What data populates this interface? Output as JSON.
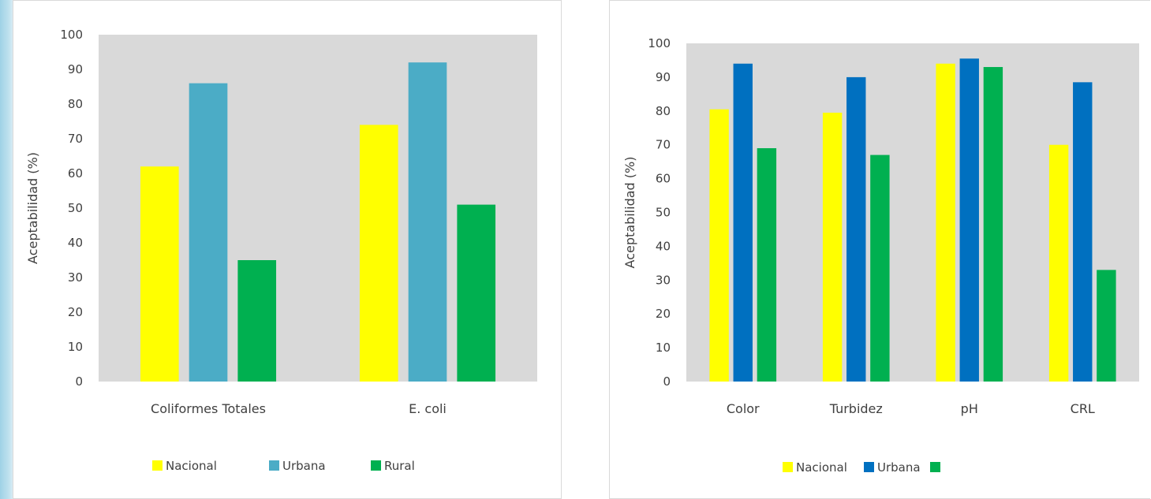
{
  "chart_data": [
    {
      "type": "bar",
      "title": "",
      "xlabel": "",
      "ylabel": "Aceptabilidad (%)",
      "ylim": [
        0,
        100
      ],
      "yticks": [
        0,
        10,
        20,
        30,
        40,
        50,
        60,
        70,
        80,
        90,
        100
      ],
      "grid": false,
      "legend_position": "bottom",
      "categories": [
        "Coliformes Totales",
        "E. coli"
      ],
      "series": [
        {
          "name": "Nacional",
          "color": "#ffff00",
          "values": [
            62,
            74
          ]
        },
        {
          "name": "Urbana",
          "color": "#4bacc6",
          "values": [
            86,
            92
          ]
        },
        {
          "name": "Rural",
          "color": "#00b050",
          "values": [
            35,
            51
          ]
        }
      ]
    },
    {
      "type": "bar",
      "title": "",
      "xlabel": "",
      "ylabel": "Aceptabilidad (%)",
      "ylim": [
        0,
        100
      ],
      "yticks": [
        0,
        10,
        20,
        30,
        40,
        50,
        60,
        70,
        80,
        90,
        100
      ],
      "grid": false,
      "legend_position": "bottom",
      "categories": [
        "Color",
        "Turbidez",
        "pH",
        "CRL"
      ],
      "series": [
        {
          "name": "Nacional",
          "color": "#ffff00",
          "values": [
            80.5,
            79.5,
            94,
            70
          ]
        },
        {
          "name": "Urbana",
          "color": "#0070c0",
          "values": [
            94,
            90,
            95.5,
            88.5
          ]
        },
        {
          "name": "",
          "color": "#00b050",
          "values": [
            69,
            67,
            93,
            33
          ]
        }
      ]
    }
  ]
}
